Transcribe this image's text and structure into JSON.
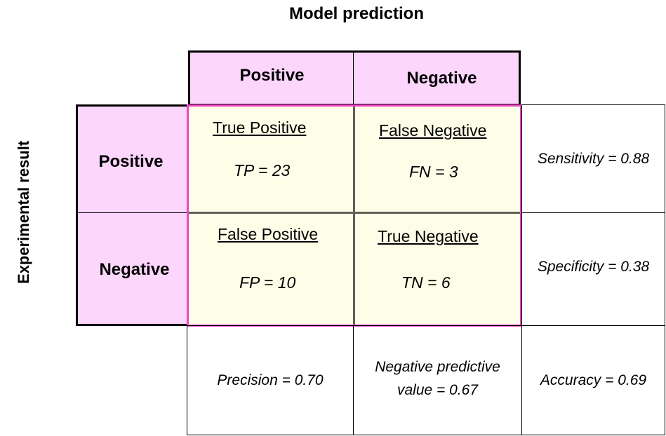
{
  "axes": {
    "top_title": "Model prediction",
    "side_title": "Experimental result"
  },
  "columns": {
    "positive": "Positive",
    "negative": "Negative"
  },
  "rows": {
    "positive": "Positive",
    "negative": "Negative"
  },
  "matrix": {
    "tp": {
      "label": "True Positive",
      "value": "TP = 23"
    },
    "fn": {
      "label": "False Negative",
      "value": "FN = 3"
    },
    "fp": {
      "label": "False Positive",
      "value": "FP = 10"
    },
    "tn": {
      "label": "True Negative",
      "value": "TN = 6"
    }
  },
  "metrics": {
    "sensitivity": "Sensitivity = 0.88",
    "specificity": "Specificity = 0.38",
    "precision": "Precision = 0.70",
    "npv_line1": "Negative predictive",
    "npv_line2": "value = 0.67",
    "accuracy": "Accuracy = 0.69"
  },
  "colors": {
    "header_fill": "#fcd6fc",
    "matrix_fill": "#fefee8",
    "matrix_border": "#ea48c4",
    "matrix_divider": "#5f5f55"
  }
}
